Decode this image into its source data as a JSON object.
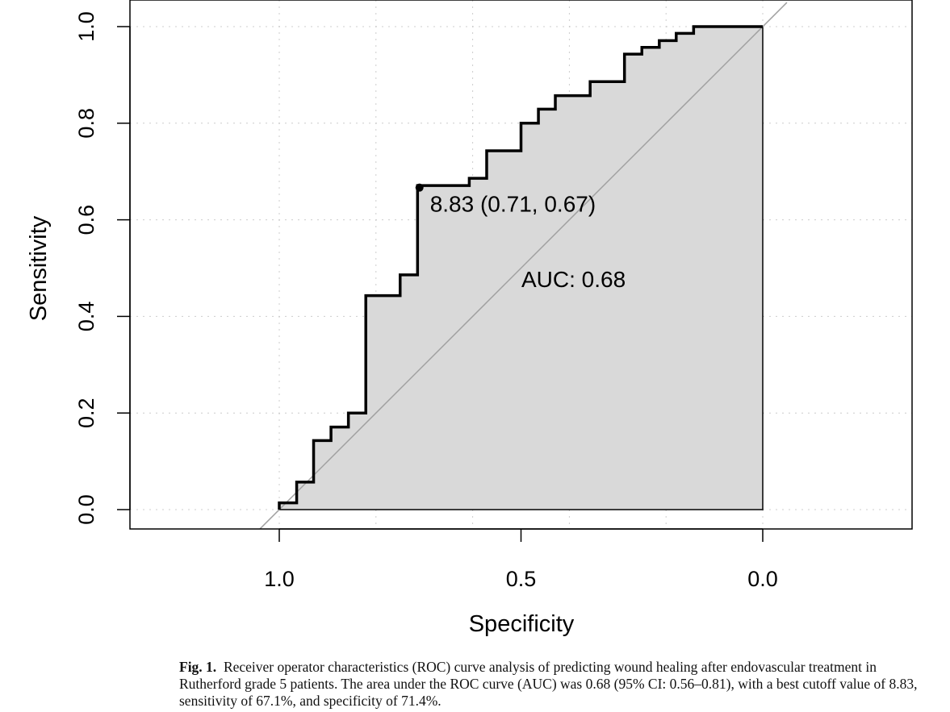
{
  "chart_data": {
    "type": "line",
    "xlabel": "Specificity",
    "ylabel": "Sensitivity",
    "xlim": [
      1.0,
      0.0
    ],
    "ylim": [
      0.0,
      1.0
    ],
    "x_reversed": true,
    "grid": true,
    "xticks": [
      "1.0",
      "0.5",
      "0.0"
    ],
    "yticks": [
      "0.0",
      "0.2",
      "0.4",
      "0.6",
      "0.8",
      "1.0"
    ],
    "series": [
      {
        "x": [
          1.0,
          1.0,
          0.964,
          0.964,
          0.929,
          0.929,
          0.893,
          0.893,
          0.857,
          0.857,
          0.821,
          0.821,
          0.75,
          0.75,
          0.714,
          0.714,
          0.607,
          0.607,
          0.571,
          0.571,
          0.5,
          0.5,
          0.464,
          0.464,
          0.429,
          0.429,
          0.357,
          0.357,
          0.286,
          0.286,
          0.25,
          0.25,
          0.214,
          0.214,
          0.179,
          0.179,
          0.143,
          0.143,
          0.0
        ],
        "y": [
          0.0,
          0.014,
          0.014,
          0.057,
          0.057,
          0.143,
          0.143,
          0.171,
          0.171,
          0.2,
          0.2,
          0.443,
          0.443,
          0.486,
          0.486,
          0.671,
          0.671,
          0.686,
          0.686,
          0.743,
          0.743,
          0.8,
          0.8,
          0.829,
          0.829,
          0.857,
          0.857,
          0.886,
          0.886,
          0.943,
          0.943,
          0.957,
          0.957,
          0.971,
          0.971,
          0.986,
          0.986,
          1.0,
          1.0
        ]
      }
    ],
    "best_point": {
      "specificity": 0.71,
      "sensitivity": 0.67,
      "label": "8.83 (0.71, 0.67)"
    },
    "auc_label": "AUC: 0.68",
    "fill_color": "#d9d9d9",
    "diagonal_color": "#a0a0a0"
  },
  "caption": {
    "label": "Fig. 1.",
    "text": "Receiver operator characteristics (ROC) curve analysis of predicting wound healing after endovascular treatment in Rutherford grade 5 patients. The area under the ROC curve (AUC) was 0.68 (95% CI: 0.56–0.81), with a best cutoff value of 8.83, sensitivity of 67.1%, and specificity of 71.4%."
  }
}
